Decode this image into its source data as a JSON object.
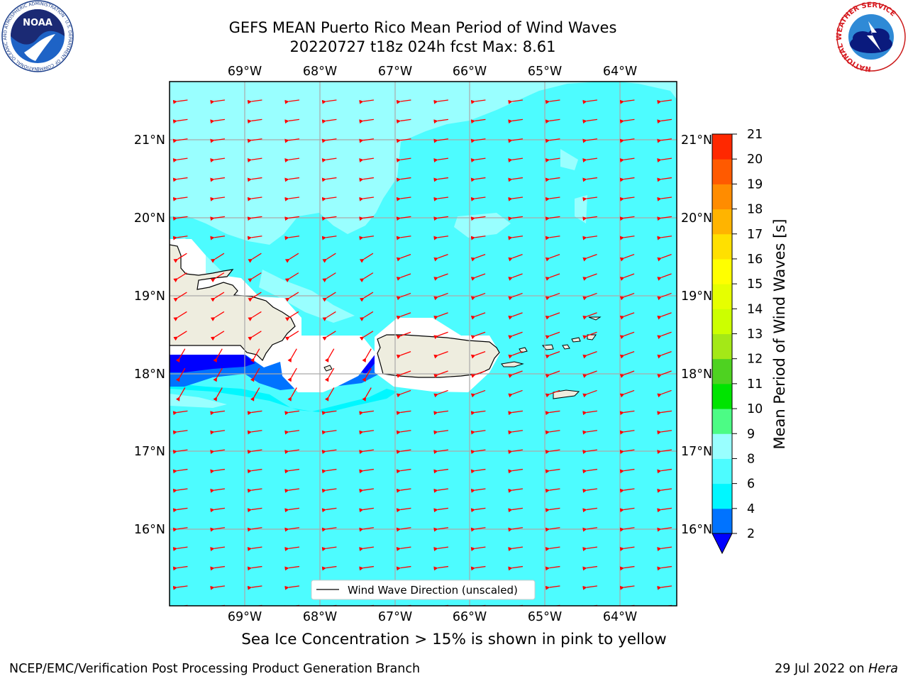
{
  "header": {
    "title_line1": "GEFS MEAN Puerto Rico Mean Period of Wind Waves",
    "title_line2": "20220727 t18z 024h fcst   Max: 8.61"
  },
  "map": {
    "lon_labels": [
      "69°W",
      "68°W",
      "67°W",
      "66°W",
      "65°W",
      "64°W"
    ],
    "lat_labels": [
      "21°N",
      "20°N",
      "19°N",
      "18°N",
      "17°N",
      "16°N"
    ],
    "legend_label": "Wind Wave Direction (unscaled)",
    "arrow_color": "#ff0000",
    "land_color": "#eeeddf"
  },
  "colorbar": {
    "label": "Mean Period of Wind Waves [s]",
    "ticks": [
      "2",
      "4",
      "6",
      "8",
      "9",
      "10",
      "11",
      "12",
      "13",
      "14",
      "15",
      "16",
      "17",
      "18",
      "19",
      "20",
      "21"
    ],
    "colors": [
      "#0073ff",
      "#00f7ff",
      "#4dfcff",
      "#99ffff",
      "#4cfc85",
      "#00e400",
      "#4ed221",
      "#a4e817",
      "#ccff00",
      "#e6ff00",
      "#ffff00",
      "#ffe000",
      "#ffb400",
      "#ff8c00",
      "#ff5a00",
      "#ff2800",
      "#ff0000"
    ],
    "under_color": "#0000ff"
  },
  "footer": {
    "note": "Sea Ice Concentration > 15% is shown in pink to yellow",
    "left": "NCEP/EMC/Verification Post Processing Product Generation Branch",
    "date": "29 Jul 2022 on",
    "machine": "Hera"
  },
  "logos": {
    "noaa_text": "NOAA",
    "noaa_ring": "NATIONAL OCEANIC AND ATMOSPHERIC ADMINISTRATION · U.S. DEPARTMENT OF COMMERCE",
    "nws_ring": "NATIONAL WEATHER SERVICE"
  }
}
